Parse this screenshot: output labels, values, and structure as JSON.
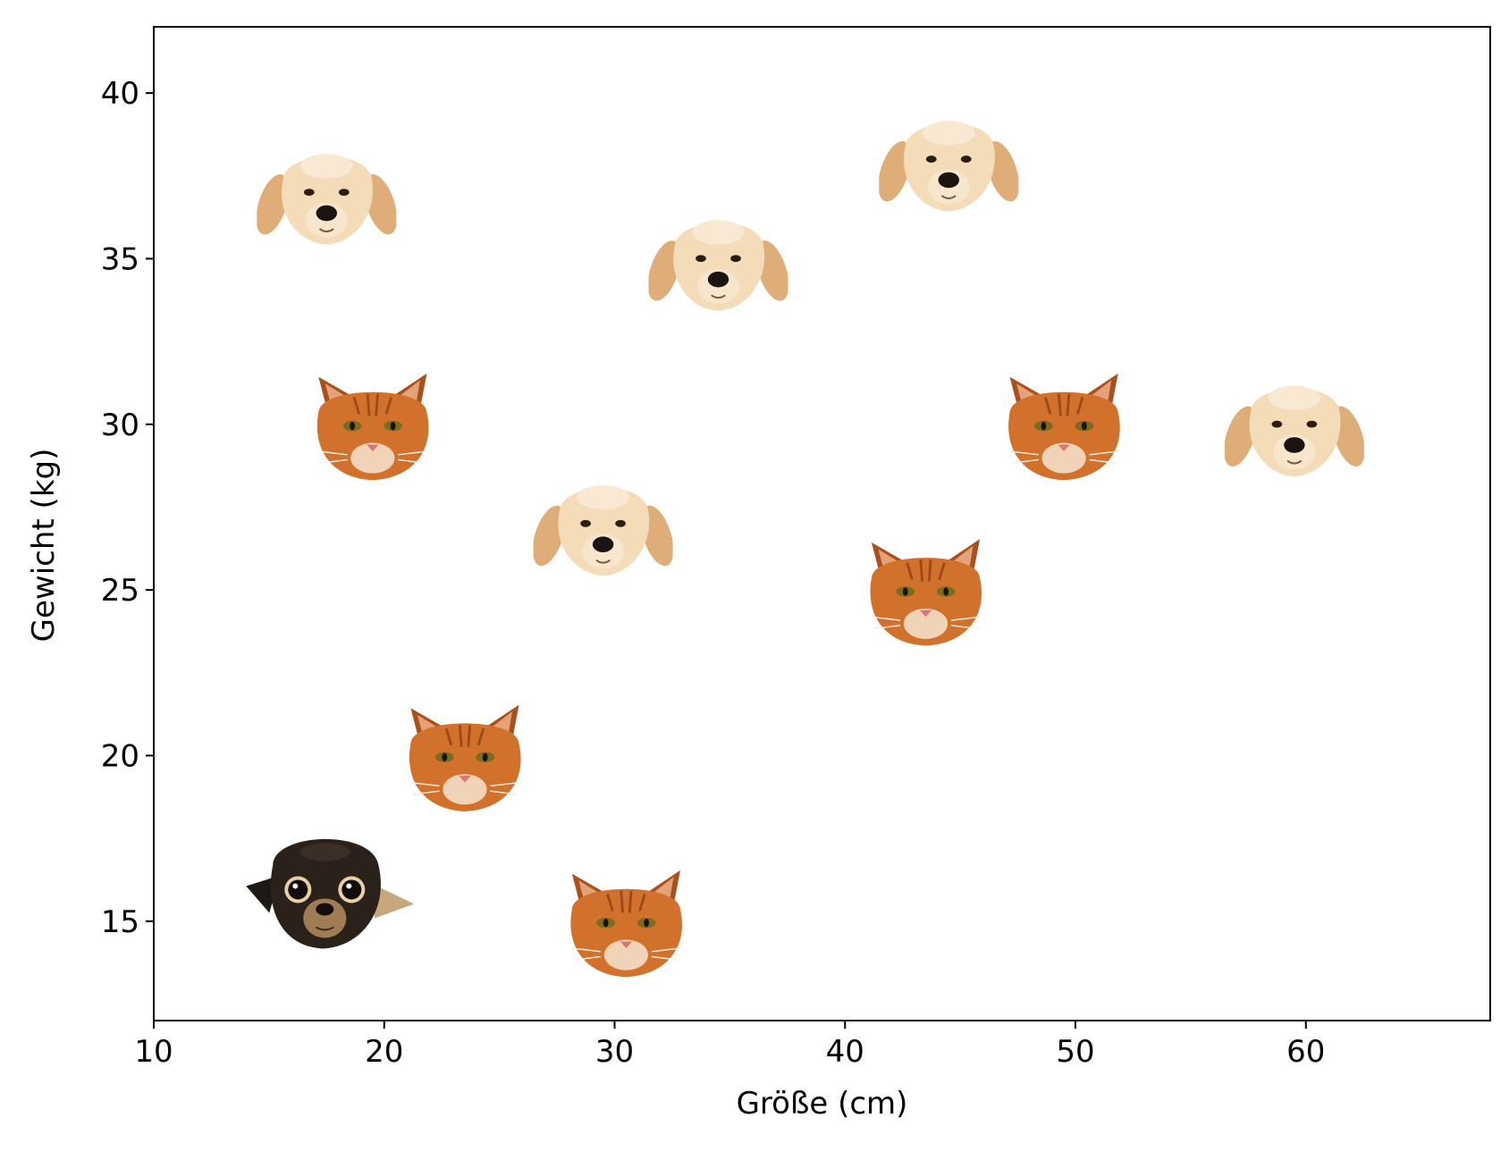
{
  "chart_data": {
    "type": "scatter",
    "title": "",
    "xlabel": "Größe (cm)",
    "ylabel": "Gewicht (kg)",
    "xlim": [
      10,
      68
    ],
    "ylim": [
      12,
      42
    ],
    "xticks": [
      10,
      20,
      30,
      40,
      50,
      60
    ],
    "yticks": [
      15,
      20,
      25,
      30,
      35,
      40
    ],
    "grid": false,
    "legend": "none",
    "marker_type": "animal-head images",
    "points": [
      {
        "x": 17.5,
        "y": 36.9,
        "marker": "golden-puppy"
      },
      {
        "x": 34.5,
        "y": 34.9,
        "marker": "golden-puppy"
      },
      {
        "x": 44.5,
        "y": 37.9,
        "marker": "golden-puppy"
      },
      {
        "x": 29.5,
        "y": 26.9,
        "marker": "golden-puppy"
      },
      {
        "x": 59.5,
        "y": 29.9,
        "marker": "golden-puppy"
      },
      {
        "x": 19.5,
        "y": 29.9,
        "marker": "orange-cat"
      },
      {
        "x": 49.5,
        "y": 29.9,
        "marker": "orange-cat"
      },
      {
        "x": 43.5,
        "y": 24.9,
        "marker": "orange-cat"
      },
      {
        "x": 23.5,
        "y": 19.9,
        "marker": "orange-cat"
      },
      {
        "x": 30.5,
        "y": 14.9,
        "marker": "orange-cat"
      },
      {
        "x": 17.5,
        "y": 15.9,
        "marker": "chihuahua"
      }
    ]
  }
}
